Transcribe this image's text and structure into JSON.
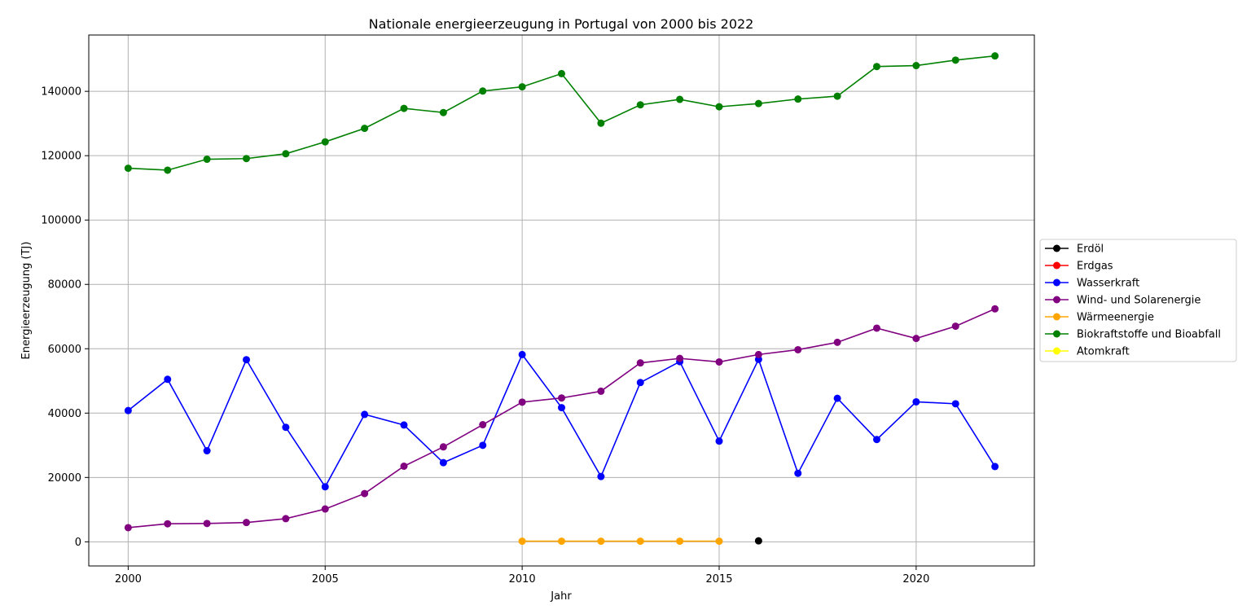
{
  "chart_data": {
    "type": "line",
    "title": "Nationale energieerzeugung in Portugal von 2000 bis 2022",
    "xlabel": "Jahr",
    "ylabel": "Energieerzeugung (TJ)",
    "xlim": [
      1999,
      2023
    ],
    "ylim": [
      -7500,
      157500
    ],
    "x_ticks": [
      2000,
      2005,
      2010,
      2015,
      2020
    ],
    "y_ticks": [
      0,
      20000,
      40000,
      60000,
      80000,
      100000,
      120000,
      140000
    ],
    "grid": true,
    "legend_position": "center-right outside",
    "x": [
      2000,
      2001,
      2002,
      2003,
      2004,
      2005,
      2006,
      2007,
      2008,
      2009,
      2010,
      2011,
      2012,
      2013,
      2014,
      2015,
      2016,
      2017,
      2018,
      2019,
      2020,
      2021,
      2022
    ],
    "series": [
      {
        "name": "Erdöl",
        "color": "#000000",
        "values": [
          null,
          null,
          null,
          null,
          null,
          null,
          null,
          null,
          null,
          null,
          null,
          null,
          null,
          null,
          null,
          null,
          300,
          null,
          null,
          null,
          null,
          null,
          null
        ]
      },
      {
        "name": "Erdgas",
        "color": "#ff0000",
        "values": [
          null,
          null,
          null,
          null,
          null,
          null,
          null,
          null,
          null,
          null,
          null,
          null,
          null,
          null,
          null,
          null,
          null,
          null,
          null,
          null,
          null,
          null,
          null
        ]
      },
      {
        "name": "Wasserkraft",
        "color": "#0000ff",
        "values": [
          40800,
          50500,
          28300,
          56600,
          35600,
          17100,
          39600,
          36300,
          24600,
          30000,
          58200,
          41700,
          20300,
          49500,
          56000,
          31300,
          56700,
          21300,
          44600,
          31800,
          43500,
          42900,
          23400
        ]
      },
      {
        "name": "Wind- und Solarenergie",
        "color": "#800080",
        "values": [
          4400,
          5600,
          5700,
          6000,
          7200,
          10200,
          15000,
          23500,
          29500,
          36400,
          43400,
          44700,
          46800,
          55600,
          57000,
          55900,
          58200,
          59700,
          62000,
          66400,
          63200,
          67000,
          72400
        ]
      },
      {
        "name": "Wärmeenergie",
        "color": "#ffa500",
        "values": [
          null,
          null,
          null,
          null,
          null,
          null,
          null,
          null,
          null,
          null,
          200,
          200,
          200,
          200,
          200,
          200,
          null,
          null,
          null,
          null,
          null,
          null,
          null
        ]
      },
      {
        "name": "Biokraftstoffe und Bioabfall",
        "color": "#008000",
        "values": [
          116100,
          115500,
          118900,
          119100,
          120600,
          124300,
          128500,
          134700,
          133400,
          140100,
          141400,
          145500,
          130100,
          135800,
          137500,
          135200,
          136200,
          137600,
          138500,
          147700,
          148000,
          149700,
          151000
        ]
      },
      {
        "name": "Atomkraft",
        "color": "#ffff00",
        "values": [
          null,
          null,
          null,
          null,
          null,
          null,
          null,
          null,
          null,
          null,
          null,
          null,
          null,
          null,
          null,
          null,
          null,
          null,
          null,
          null,
          null,
          null,
          null
        ]
      }
    ]
  }
}
